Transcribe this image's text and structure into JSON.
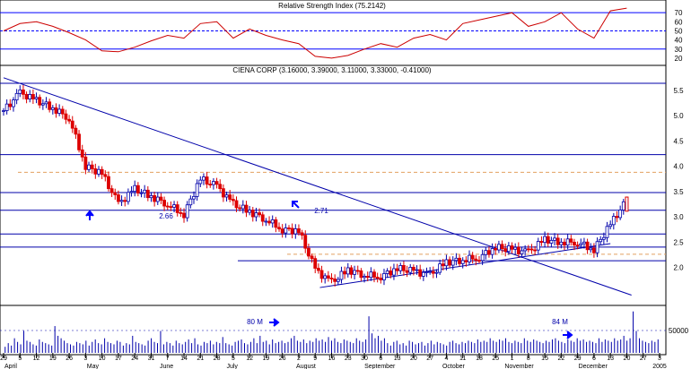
{
  "chart_data": [
    {
      "type": "line",
      "panel": "rsi",
      "title": "Relative Strength Index (75.2142)",
      "ylim": [
        15,
        80
      ],
      "yticks": [
        "20",
        "30",
        "40",
        "50",
        "60",
        "70"
      ],
      "reference_lines": [
        30,
        50,
        70
      ],
      "series": [
        {
          "color": "#cc0000",
          "x": [
            "2004-03-29",
            "2004-04-05",
            "2004-04-12",
            "2004-04-19",
            "2004-04-26",
            "2004-05-03",
            "2004-05-10",
            "2004-05-17",
            "2004-05-24",
            "2004-05-31",
            "2004-06-07",
            "2004-06-14",
            "2004-06-21",
            "2004-06-28",
            "2004-07-05",
            "2004-07-12",
            "2004-07-19",
            "2004-07-26",
            "2004-08-02",
            "2004-08-09",
            "2004-08-16",
            "2004-08-23",
            "2004-08-30",
            "2004-09-06",
            "2004-09-13",
            "2004-09-20",
            "2004-09-27",
            "2004-10-04",
            "2004-10-11",
            "2004-10-18",
            "2004-10-25",
            "2004-11-01",
            "2004-11-08",
            "2004-11-15",
            "2004-11-22",
            "2004-11-29",
            "2004-12-06",
            "2004-12-13",
            "2004-12-20"
          ],
          "values": [
            50,
            58,
            60,
            55,
            48,
            40,
            28,
            27,
            32,
            39,
            45,
            42,
            58,
            60,
            42,
            52,
            45,
            40,
            36,
            22,
            20,
            23,
            30,
            36,
            32,
            42,
            46,
            40,
            58,
            62,
            66,
            70,
            55,
            60,
            70,
            52,
            42,
            72,
            75
          ]
        }
      ]
    },
    {
      "type": "candlestick",
      "panel": "price",
      "title": "CIENA CORP (3.16000, 3.39000, 3.11000, 3.33000, -0.41000)",
      "ylim": [
        1.3,
        5.8
      ],
      "yticks": [
        "2.0",
        "2.5",
        "3.0",
        "3.5",
        "4.0",
        "4.5",
        "5.0",
        "5.5"
      ],
      "horizontal_levels": [
        5.64,
        4.23,
        3.48,
        3.13,
        2.66,
        2.4,
        2.13
      ],
      "dashed_levels": [
        3.88,
        2.26
      ],
      "trendlines": [
        {
          "from": [
            "2004-03-29",
            5.75
          ],
          "to": [
            "2004-12-22",
            1.45
          ]
        },
        {
          "from": [
            "2004-08-11",
            1.6
          ],
          "to": [
            "2004-12-13",
            2.47
          ]
        }
      ],
      "annotations": [
        "2.66",
        "2.71"
      ],
      "series": [
        {
          "name": "close",
          "x": [
            "2004-03-29",
            "2004-04-05",
            "2004-04-12",
            "2004-04-19",
            "2004-04-26",
            "2004-05-03",
            "2004-05-10",
            "2004-05-17",
            "2004-05-24",
            "2004-05-31",
            "2004-06-07",
            "2004-06-14",
            "2004-06-21",
            "2004-06-28",
            "2004-07-05",
            "2004-07-12",
            "2004-07-19",
            "2004-07-26",
            "2004-08-02",
            "2004-08-09",
            "2004-08-16",
            "2004-08-23",
            "2004-08-30",
            "2004-09-06",
            "2004-09-13",
            "2004-09-20",
            "2004-09-27",
            "2004-10-04",
            "2004-10-11",
            "2004-10-18",
            "2004-10-25",
            "2004-11-01",
            "2004-11-08",
            "2004-11-15",
            "2004-11-22",
            "2004-11-29",
            "2004-12-06",
            "2004-12-13",
            "2004-12-20"
          ],
          "values": [
            5.1,
            5.45,
            5.3,
            5.15,
            4.95,
            4.0,
            3.85,
            3.25,
            3.55,
            3.4,
            3.25,
            3.05,
            3.75,
            3.6,
            3.25,
            3.1,
            2.95,
            2.75,
            2.72,
            1.95,
            1.7,
            1.95,
            1.85,
            1.82,
            1.98,
            1.92,
            1.85,
            2.1,
            2.15,
            2.2,
            2.4,
            2.35,
            2.3,
            2.55,
            2.5,
            2.5,
            2.35,
            2.85,
            3.33
          ]
        }
      ]
    },
    {
      "type": "bar",
      "panel": "volume",
      "yticks": [
        "50000"
      ],
      "annotations": [
        "80 M",
        "84 M"
      ],
      "series": [
        {
          "name": "volume",
          "values": [
            5,
            8,
            6,
            12,
            9,
            7,
            18,
            10,
            9,
            7,
            6,
            11,
            9,
            8,
            7,
            6,
            22,
            14,
            12,
            10,
            8,
            7,
            6,
            9,
            8,
            7,
            10,
            6,
            9,
            11,
            8,
            7,
            12,
            9,
            8,
            7,
            10,
            9,
            6,
            8,
            7,
            14,
            9,
            8,
            7,
            6,
            10,
            12,
            9,
            8,
            18,
            7,
            9,
            8,
            6,
            10,
            8,
            7,
            9,
            11,
            8,
            12,
            7,
            6,
            9,
            8,
            10,
            7,
            9,
            8,
            13,
            8,
            7,
            6,
            9,
            10,
            11,
            8,
            7,
            9,
            12,
            8,
            14,
            9,
            10,
            7,
            11,
            8,
            9,
            10,
            8,
            9,
            12,
            14,
            10,
            9,
            11,
            8,
            10,
            9,
            12,
            10,
            11,
            9,
            13,
            10,
            12,
            9,
            8,
            11,
            10,
            9,
            8,
            12,
            10,
            9,
            11,
            30,
            16,
            12,
            14,
            10,
            12,
            8,
            6,
            9,
            10,
            7,
            8,
            6,
            10,
            9,
            7,
            8,
            9,
            6,
            8,
            10,
            7,
            9,
            8,
            7,
            6,
            9,
            10,
            8,
            7,
            9,
            8,
            10,
            9,
            8,
            11,
            9,
            10,
            9,
            12,
            10,
            9,
            11,
            10,
            12,
            9,
            8,
            10,
            9,
            8,
            12,
            10,
            9,
            11,
            10,
            9,
            8,
            10,
            9,
            11,
            12,
            10,
            9,
            8,
            11,
            10,
            9,
            12,
            10,
            11,
            9,
            10,
            9,
            8,
            12,
            9,
            11,
            10,
            9,
            12,
            10,
            11,
            14,
            10,
            12,
            34,
            18,
            12,
            10,
            9,
            8,
            10,
            9,
            11
          ]
        }
      ]
    }
  ],
  "x_axis": {
    "day_labels": [
      "29",
      "5",
      "12",
      "19",
      "26",
      "3",
      "10",
      "17",
      "24",
      "31",
      "7",
      "14",
      "21",
      "28",
      "5",
      "12",
      "19",
      "26",
      "2",
      "9",
      "16",
      "23",
      "30",
      "6",
      "13",
      "20",
      "27",
      "4",
      "11",
      "18",
      "25",
      "1",
      "8",
      "15",
      "22",
      "29",
      "6",
      "13",
      "20",
      "27",
      "3"
    ],
    "months": [
      "April",
      "May",
      "June",
      "July",
      "August",
      "September",
      "October",
      "November",
      "December",
      "2005"
    ]
  }
}
